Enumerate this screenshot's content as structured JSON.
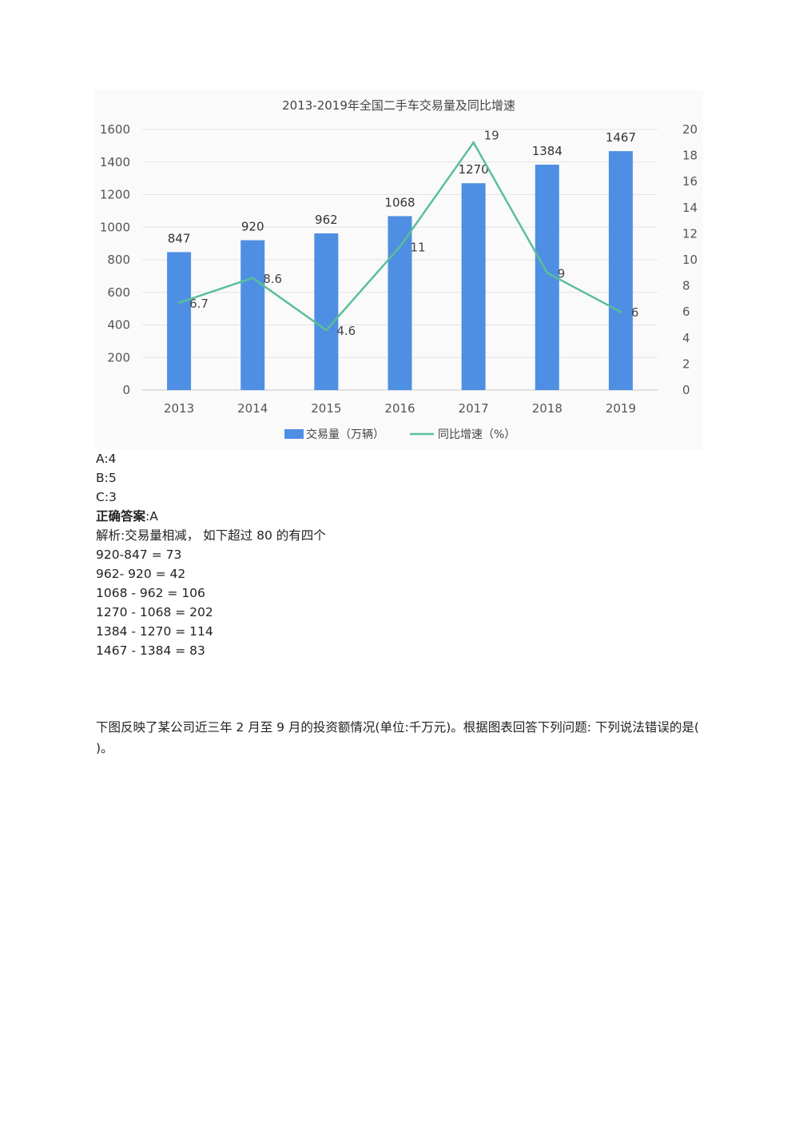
{
  "chart_data": {
    "type": "bar",
    "title": "2013-2019年全国二手车交易量及同比增速",
    "categories": [
      "2013",
      "2014",
      "2015",
      "2016",
      "2017",
      "2018",
      "2019"
    ],
    "series": [
      {
        "name": "交易量（万辆）",
        "chart": "bar",
        "axis": "left",
        "values": [
          847,
          920,
          962,
          1068,
          1270,
          1384,
          1467
        ],
        "color": "#4f8fe3"
      },
      {
        "name": "同比增速（%）",
        "chart": "line",
        "axis": "right",
        "values": [
          6.7,
          8.6,
          4.6,
          11,
          19,
          9,
          6
        ],
        "color": "#5bbf98"
      }
    ],
    "ylim_left": [
      0,
      1600
    ],
    "yticks_left": [
      0,
      200,
      400,
      600,
      800,
      1000,
      1200,
      1400,
      1600
    ],
    "ylim_right": [
      0,
      20
    ],
    "yticks_right": [
      0,
      2,
      4,
      6,
      8,
      10,
      12,
      14,
      16,
      18,
      20
    ],
    "grid": true,
    "legend": "bottom"
  },
  "options": [
    {
      "label": "A:4"
    },
    {
      "label": "B:5"
    },
    {
      "label": "C:3"
    }
  ],
  "answer": {
    "label": "正确答案",
    "value": ":A"
  },
  "analysis": {
    "intro": "解析:交易量相减，  如下超过 80 的有四个",
    "lines": [
      "920-847 = 73",
      "962- 920 = 42",
      "1068 - 962 = 106",
      "1270 - 1068 = 202",
      "1384 - 1270 = 114",
      "1467 - 1384 = 83"
    ]
  },
  "next_question": {
    "text": "下图反映了某公司近三年 2 月至 9 月的投资额情况(单位:千万元)。根据图表回答下列问题: 下列说法错误的是(  )。"
  }
}
